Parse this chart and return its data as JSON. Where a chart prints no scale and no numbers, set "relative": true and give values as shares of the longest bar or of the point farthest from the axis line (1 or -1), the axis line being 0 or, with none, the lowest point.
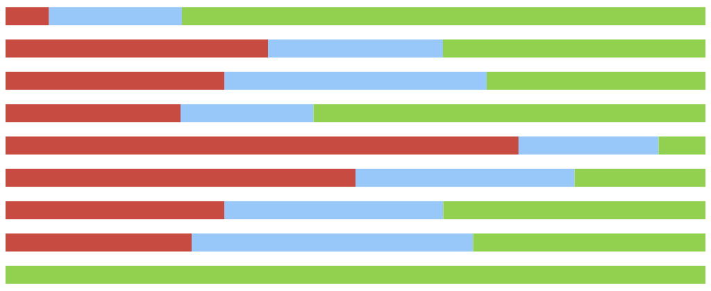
{
  "chart_data": {
    "type": "bar",
    "orientation": "horizontal",
    "stacked": true,
    "relative": true,
    "categories": [
      null,
      null,
      null,
      null,
      null,
      null,
      null,
      null,
      null
    ],
    "series": [
      {
        "color": "#c84b42",
        "values": [
          0.062,
          0.375,
          0.3125,
          0.25,
          0.733,
          0.5,
          0.3125,
          0.266,
          0
        ]
      },
      {
        "color": "#98c7fa",
        "values": [
          0.19,
          0.25,
          0.375,
          0.19,
          0.2,
          0.313,
          0.313,
          0.402,
          0
        ]
      },
      {
        "color": "#92d050",
        "values": [
          0.748,
          0.375,
          0.3125,
          0.56,
          0.067,
          0.187,
          0.3745,
          0.332,
          1
        ]
      }
    ]
  }
}
